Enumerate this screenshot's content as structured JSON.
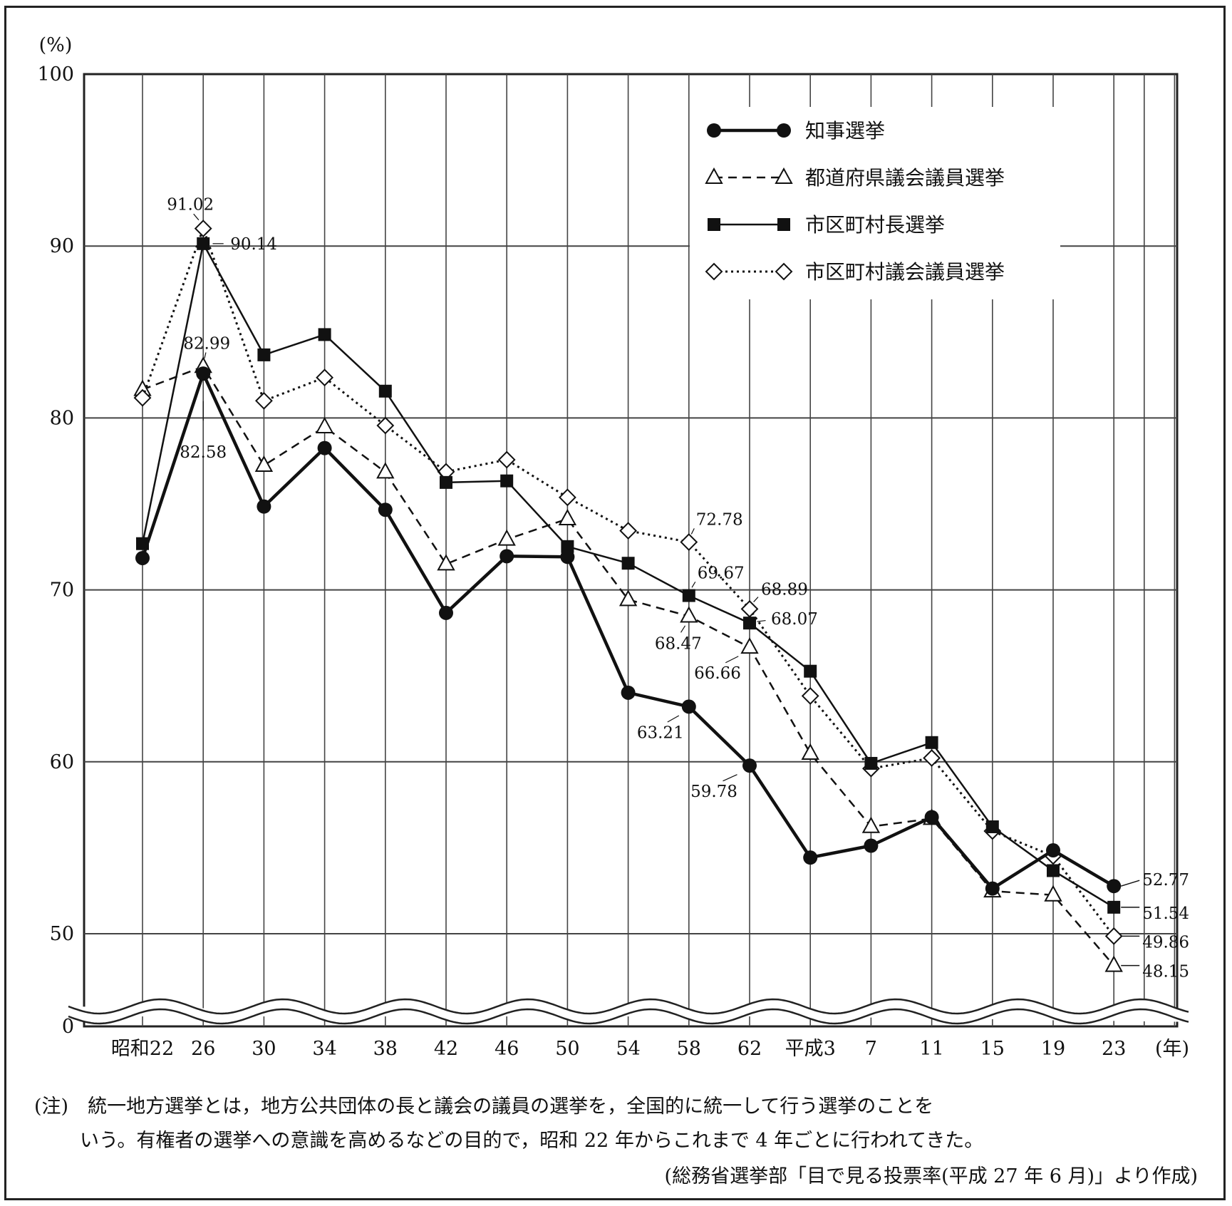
{
  "chart_data": {
    "type": "line",
    "y_unit_label": "(%)",
    "x_unit_label": "(年)",
    "y_ticks": [
      0,
      50,
      60,
      70,
      80,
      90,
      100
    ],
    "ylim": [
      45,
      100
    ],
    "axis_break": true,
    "grid": true,
    "legend_position": "top-right",
    "categories": [
      "昭和22",
      "26",
      "30",
      "34",
      "38",
      "42",
      "46",
      "50",
      "54",
      "58",
      "62",
      "平成3",
      "7",
      "11",
      "15",
      "19",
      "23"
    ],
    "series": [
      {
        "name": "知事選挙",
        "style": "solid-bold",
        "marker": "circle-filled",
        "values": [
          71.85,
          82.58,
          74.85,
          78.25,
          74.66,
          68.66,
          71.96,
          71.92,
          64.02,
          63.21,
          59.78,
          54.43,
          55.12,
          56.78,
          52.63,
          54.85,
          52.77
        ]
      },
      {
        "name": "都道府県議会議員選挙",
        "style": "dashed",
        "marker": "triangle-open",
        "values": [
          81.65,
          82.99,
          77.24,
          79.48,
          76.85,
          71.5,
          72.94,
          74.13,
          69.43,
          68.47,
          66.66,
          60.49,
          56.23,
          56.7,
          52.48,
          52.25,
          48.15
        ]
      },
      {
        "name": "市区町村長選挙",
        "style": "solid",
        "marker": "square-filled",
        "values": [
          72.69,
          90.14,
          83.67,
          84.85,
          81.56,
          76.25,
          76.34,
          72.52,
          71.55,
          69.67,
          68.07,
          65.27,
          59.91,
          61.12,
          56.22,
          53.67,
          51.54
        ]
      },
      {
        "name": "市区町村議会議員選挙",
        "style": "dotted",
        "marker": "diamond-open",
        "values": [
          81.17,
          91.02,
          81.0,
          82.35,
          79.56,
          76.87,
          77.57,
          75.38,
          73.44,
          72.78,
          68.89,
          63.83,
          59.61,
          60.22,
          55.97,
          54.52,
          49.86
        ]
      }
    ],
    "annotations": [
      {
        "text": "91.02",
        "series": 3,
        "index": 1
      },
      {
        "text": "90.14",
        "series": 2,
        "index": 1
      },
      {
        "text": "82.99",
        "series": 1,
        "index": 1
      },
      {
        "text": "82.58",
        "series": 0,
        "index": 1
      },
      {
        "text": "72.78",
        "series": 3,
        "index": 9
      },
      {
        "text": "69.67",
        "series": 2,
        "index": 9
      },
      {
        "text": "68.47",
        "series": 1,
        "index": 9
      },
      {
        "text": "63.21",
        "series": 0,
        "index": 9
      },
      {
        "text": "68.89",
        "series": 3,
        "index": 10
      },
      {
        "text": "68.07",
        "series": 2,
        "index": 10
      },
      {
        "text": "66.66",
        "series": 1,
        "index": 10
      },
      {
        "text": "59.78",
        "series": 0,
        "index": 10
      },
      {
        "text": "52.77",
        "series": 0,
        "index": 16
      },
      {
        "text": "51.54",
        "series": 2,
        "index": 16
      },
      {
        "text": "49.86",
        "series": 3,
        "index": 16
      },
      {
        "text": "48.15",
        "series": 1,
        "index": 16
      }
    ]
  },
  "notes": {
    "line1": "(注)　統一地方選挙とは，地方公共団体の長と議会の議員の選挙を，全国的に統一して行う選挙のことを",
    "line2": "いう。有権者の選挙への意識を高めるなどの目的で，昭和 22 年からこれまで 4 年ごとに行われてきた。",
    "source": "(総務省選挙部「目で見る投票率(平成 27 年 6 月)」より作成)"
  }
}
